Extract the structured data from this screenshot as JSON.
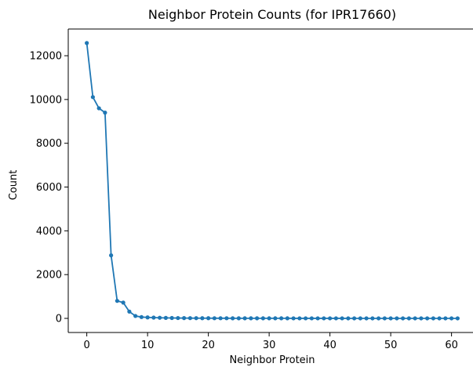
{
  "chart_data": {
    "type": "line",
    "title": "Neighbor Protein Counts (for IPR17660)",
    "xlabel": "Neighbor Protein",
    "ylabel": "Count",
    "xlim": [
      -3.05,
      64.05
    ],
    "ylim": [
      -645,
      13220
    ],
    "xticks": [
      0,
      10,
      20,
      30,
      40,
      50,
      60
    ],
    "yticks": [
      0,
      2000,
      4000,
      6000,
      8000,
      10000,
      12000
    ],
    "grid": false,
    "legend": "none",
    "line_color": "#1f77b4",
    "marker": "circle",
    "series": [
      {
        "x": [
          0,
          1,
          2,
          3,
          4,
          5,
          6,
          7,
          8,
          9,
          10,
          11,
          12,
          13,
          14,
          15,
          16,
          17,
          18,
          19,
          20,
          21,
          22,
          23,
          24,
          25,
          26,
          27,
          28,
          29,
          30,
          31,
          32,
          33,
          34,
          35,
          36,
          37,
          38,
          39,
          40,
          41,
          42,
          43,
          44,
          45,
          46,
          47,
          48,
          49,
          50,
          51,
          52,
          53,
          54,
          55,
          56,
          57,
          58,
          59,
          60,
          61
        ],
        "values": [
          12580,
          10110,
          9600,
          9400,
          2880,
          800,
          720,
          310,
          110,
          60,
          45,
          35,
          28,
          22,
          18,
          15,
          13,
          11,
          10,
          9,
          8,
          7,
          6,
          6,
          5,
          5,
          4,
          4,
          4,
          3,
          3,
          3,
          3,
          3,
          2,
          2,
          2,
          2,
          2,
          2,
          2,
          2,
          2,
          1,
          1,
          1,
          1,
          1,
          1,
          1,
          1,
          1,
          1,
          1,
          1,
          1,
          1,
          1,
          1,
          1,
          1,
          1
        ]
      }
    ]
  }
}
